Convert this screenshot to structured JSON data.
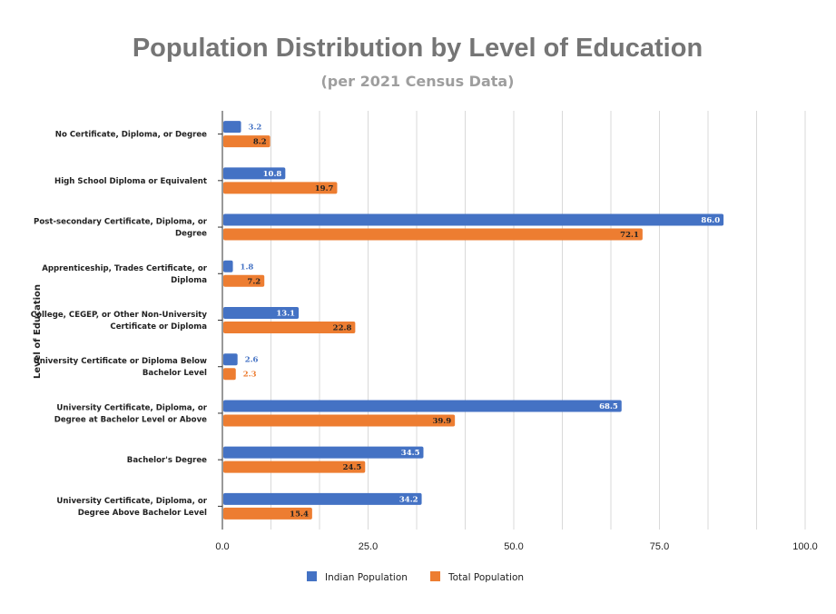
{
  "chart_data": {
    "type": "bar",
    "orientation": "horizontal",
    "title": "Population Distribution by Level of Education",
    "subtitle": "(per 2021 Census Data)",
    "ylabel": "Level of Education",
    "xlabel": "",
    "xlim": [
      0,
      100
    ],
    "xticks": [
      "0.0",
      "25.0",
      "50.0",
      "75.0",
      "100.0"
    ],
    "grid": true,
    "legend_position": "bottom",
    "categories": [
      [
        "No Certificate, Diploma, or Degree"
      ],
      [
        "High School Diploma or Equivalent"
      ],
      [
        "Post-secondary Certificate, Diploma, or",
        "Degree"
      ],
      [
        "Apprenticeship, Trades Certificate, or",
        "Diploma"
      ],
      [
        "College, CEGEP, or Other Non-University",
        "Certificate or Diploma"
      ],
      [
        "University Certificate or Diploma Below",
        "Bachelor Level"
      ],
      [
        "University Certificate, Diploma, or",
        "Degree at Bachelor Level or Above"
      ],
      [
        "Bachelor's Degree"
      ],
      [
        "University Certificate, Diploma, or",
        "Degree Above Bachelor Level"
      ]
    ],
    "series": [
      {
        "name": "Indian Population",
        "color": "#4472c4",
        "values": [
          3.2,
          10.8,
          86.0,
          1.8,
          13.1,
          2.6,
          68.5,
          34.5,
          34.2
        ],
        "labels": [
          "3.2",
          "10.8",
          "86.0",
          "1.8",
          "13.1",
          "2.6",
          "68.5",
          "34.5",
          "34.2"
        ]
      },
      {
        "name": "Total Population",
        "color": "#ed7d31",
        "values": [
          8.2,
          19.7,
          72.1,
          7.2,
          22.8,
          2.3,
          39.9,
          24.5,
          15.4
        ],
        "labels": [
          "8.2",
          "19.7",
          "72.1",
          "7.2",
          "22.8",
          "2.3",
          "39.9",
          "24.5",
          "15.4"
        ]
      }
    ]
  }
}
